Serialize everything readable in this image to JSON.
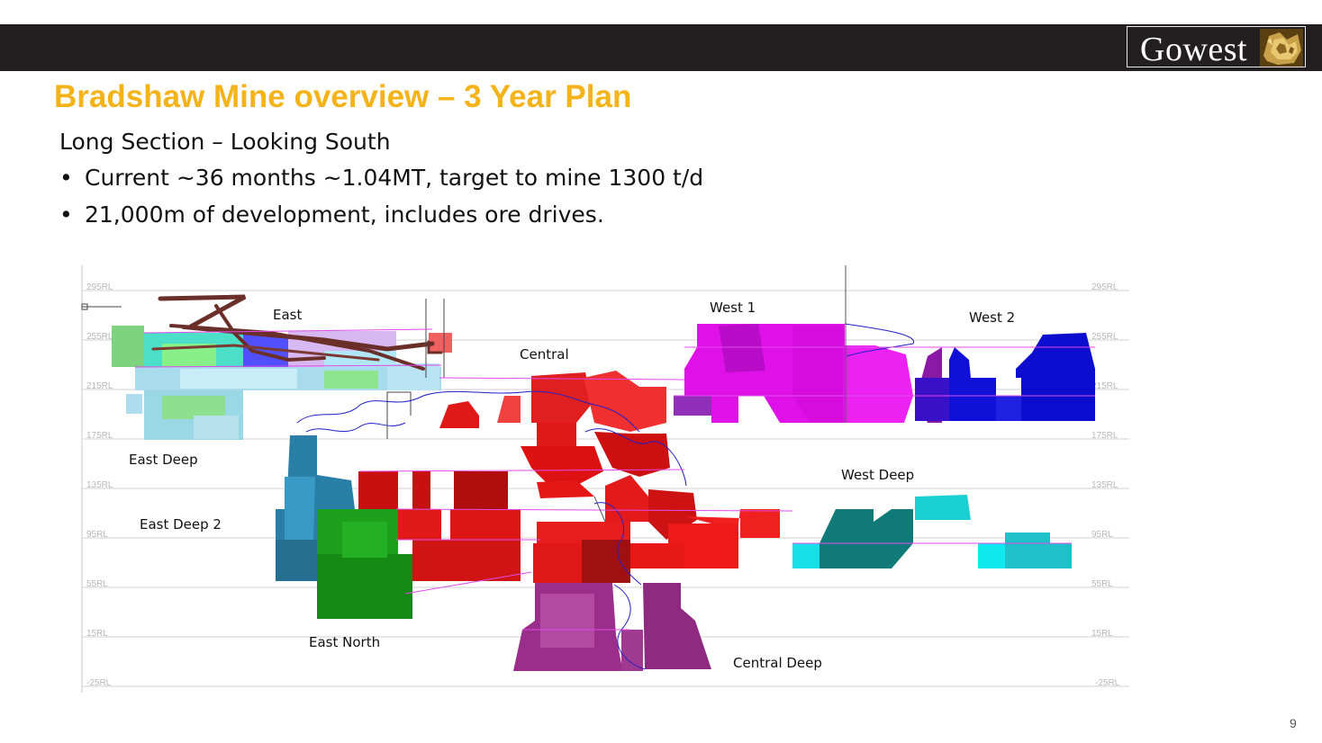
{
  "header": {
    "logo_text": "Gowest",
    "page_number": "9"
  },
  "slide": {
    "title": "Bradshaw Mine overview – 3 Year Plan",
    "subtitle": "Long Section – Looking South",
    "bullets": [
      "Current ~36 months ~1.04MT, target to mine 1300 t/d",
      "21,000m of development, includes ore drives."
    ]
  },
  "long_section": {
    "rl_levels": [
      "295RL",
      "255RL",
      "215RL",
      "175RL",
      "135RL",
      "95RL",
      "55RL",
      "15RL",
      "-25RL"
    ],
    "zones": {
      "east": "East",
      "central": "Central",
      "west1": "West 1",
      "west2": "West 2",
      "east_deep": "East Deep",
      "west_deep": "West Deep",
      "east_deep2": "East Deep 2",
      "east_north": "East North",
      "central_deep": "Central Deep"
    },
    "colors": {
      "east": "#9fd6e0",
      "east_deep": "#2a7fa6",
      "east_deep2": "#149014",
      "central": "#ee1515",
      "central_deep": "#9b2e8a",
      "west1": "#e010e8",
      "west2": "#1010d8",
      "west_deep": "#0f7a78",
      "west_deep_light": "#10e0e8",
      "development": "#6b2f2a",
      "drill": "#2020c8"
    }
  }
}
